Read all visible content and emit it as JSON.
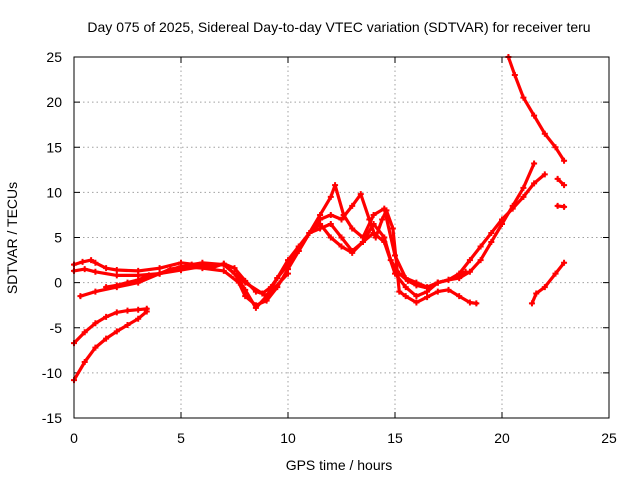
{
  "chart_data": {
    "type": "line",
    "title": "Day 075 of 2025, Sidereal Day-to-day VTEC variation (SDTVAR) for receiver teru",
    "xlabel": "GPS time / hours",
    "ylabel": "SDTVAR / TECUs",
    "xlim": [
      0,
      25
    ],
    "ylim": [
      -15,
      25
    ],
    "xticks": [
      0,
      5,
      10,
      15,
      20,
      25
    ],
    "yticks": [
      -15,
      -10,
      -5,
      0,
      5,
      10,
      15,
      20,
      25
    ],
    "grid": true,
    "color": "#ff0000",
    "series": [
      {
        "name": "s1",
        "x": [
          0,
          0.4,
          0.8,
          1.0,
          1.5,
          2.0,
          3.0,
          4.0,
          5.0,
          6.0,
          6.5,
          7.0,
          7.5,
          8.0,
          8.5,
          8.8,
          9.2,
          9.5,
          10.0,
          10.5,
          11.0,
          11.5,
          12.0,
          12.5,
          13.0,
          13.5,
          14.0,
          14.5,
          14.8,
          15.2,
          15.6,
          16.0,
          16.5,
          17.0,
          17.5,
          18.0,
          18.5,
          19.0,
          19.5,
          20.0,
          20.5,
          21.0,
          21.5
        ],
        "y": [
          2.0,
          2.3,
          2.5,
          2.2,
          1.6,
          1.4,
          1.3,
          1.6,
          2.2,
          1.9,
          1.7,
          2.1,
          1.6,
          0.2,
          -1.0,
          -1.2,
          -0.5,
          0.5,
          2.0,
          3.5,
          5.5,
          6.5,
          5.0,
          4.0,
          3.3,
          4.5,
          6.5,
          5.0,
          2.5,
          1.0,
          0.2,
          -0.3,
          -0.6,
          0.0,
          0.3,
          0.5,
          1.2,
          2.5,
          4.5,
          6.5,
          8.5,
          10.5,
          13.2
        ]
      },
      {
        "name": "s2",
        "x": [
          0,
          0.5,
          1.0,
          2.0,
          3.0,
          4.0,
          5.0,
          6.0,
          7.0,
          7.5,
          8.0,
          8.5,
          9.0,
          9.5,
          10.0,
          10.5,
          11.0,
          11.5,
          12.0,
          12.5,
          13.0,
          13.5,
          14.0,
          14.5,
          15.0,
          15.5,
          16.0,
          16.5,
          17.0,
          17.5,
          18.0,
          18.5,
          19.0,
          19.5,
          20.0,
          20.5,
          21.0,
          21.5,
          22.0
        ],
        "y": [
          1.3,
          1.5,
          1.2,
          0.8,
          0.8,
          1.0,
          1.4,
          1.8,
          2.0,
          1.0,
          -0.8,
          -2.8,
          -1.5,
          0.5,
          2.5,
          4.0,
          5.5,
          6.0,
          6.5,
          5.0,
          3.5,
          4.5,
          5.5,
          4.5,
          1.0,
          -0.5,
          -1.5,
          -1.0,
          0.0,
          0.3,
          1.0,
          2.5,
          4.0,
          5.5,
          7.0,
          8.2,
          9.5,
          11.0,
          12.0
        ]
      },
      {
        "name": "s3",
        "x": [
          0.3,
          1.0,
          2.0,
          3.0,
          4.0,
          5.0,
          6.0,
          7.0,
          7.7,
          8.0,
          8.5,
          9.0,
          9.5,
          10.0,
          10.5,
          11.0,
          11.5,
          12.0,
          12.2,
          12.6,
          13.0,
          13.5,
          14.0,
          14.5,
          15.0,
          15.5,
          16.0,
          16.5,
          17.0,
          17.5,
          18.0,
          18.3
        ],
        "y": [
          -1.5,
          -1.0,
          -0.5,
          0.0,
          1.0,
          1.8,
          1.6,
          1.3,
          0.0,
          -1.5,
          -2.5,
          -2.0,
          -0.5,
          1.5,
          3.5,
          5.5,
          7.5,
          9.5,
          10.8,
          7.5,
          6.0,
          5.0,
          7.5,
          8.2,
          3.0,
          0.5,
          0.0,
          -0.5,
          0.0,
          0.3,
          0.8,
          1.2
        ]
      },
      {
        "name": "s4",
        "x": [
          11.0,
          11.5,
          12.0,
          12.5,
          13.0,
          13.4,
          13.8,
          14.1,
          14.4,
          14.6,
          14.9,
          15.2,
          15.5,
          16.0,
          16.5,
          17.0,
          17.5,
          18.0,
          18.5,
          18.8
        ],
        "y": [
          5.5,
          7.0,
          7.5,
          7.0,
          8.5,
          9.8,
          7.0,
          5.0,
          7.0,
          8.0,
          6.0,
          -1.0,
          -1.5,
          -2.2,
          -1.6,
          -1.0,
          -0.8,
          -1.5,
          -2.2,
          -2.3
        ]
      },
      {
        "name": "s5",
        "x": [
          1.5,
          2.0,
          2.5,
          3.0,
          3.5,
          4.0,
          4.5,
          5.0,
          5.5,
          6.0,
          7.0,
          8.0,
          9.0,
          10.0
        ],
        "y": [
          -0.5,
          -0.3,
          0.0,
          0.3,
          0.8,
          1.0,
          1.5,
          1.7,
          2.0,
          2.2,
          2.0,
          0.0,
          -1.5,
          1.0
        ]
      },
      {
        "name": "s6",
        "x": [
          0,
          0.5,
          1.0,
          1.5,
          2.0,
          2.5,
          3.0,
          3.4
        ],
        "y": [
          -6.7,
          -5.5,
          -4.5,
          -3.8,
          -3.3,
          -3.1,
          -3.0,
          -2.9
        ]
      },
      {
        "name": "s7",
        "x": [
          0,
          0.5,
          1.0,
          1.5,
          2.0,
          2.5,
          3.0,
          3.4
        ],
        "y": [
          -10.8,
          -8.8,
          -7.2,
          -6.2,
          -5.4,
          -4.7,
          -4.0,
          -3.2
        ]
      },
      {
        "name": "s8",
        "x": [
          20.3,
          20.6,
          21.0,
          21.5,
          22.0,
          22.5,
          22.9
        ],
        "y": [
          25.0,
          23.0,
          20.5,
          18.5,
          16.5,
          15.0,
          13.5
        ]
      },
      {
        "name": "s9",
        "x": [
          21.4,
          21.6,
          22.0,
          22.5,
          22.9
        ],
        "y": [
          -2.3,
          -1.2,
          -0.5,
          1.0,
          2.2
        ]
      },
      {
        "name": "s10",
        "x": [
          22.6,
          22.9
        ],
        "y": [
          11.5,
          10.8
        ]
      },
      {
        "name": "s11",
        "x": [
          22.6,
          22.9
        ],
        "y": [
          8.5,
          8.4
        ]
      }
    ]
  }
}
